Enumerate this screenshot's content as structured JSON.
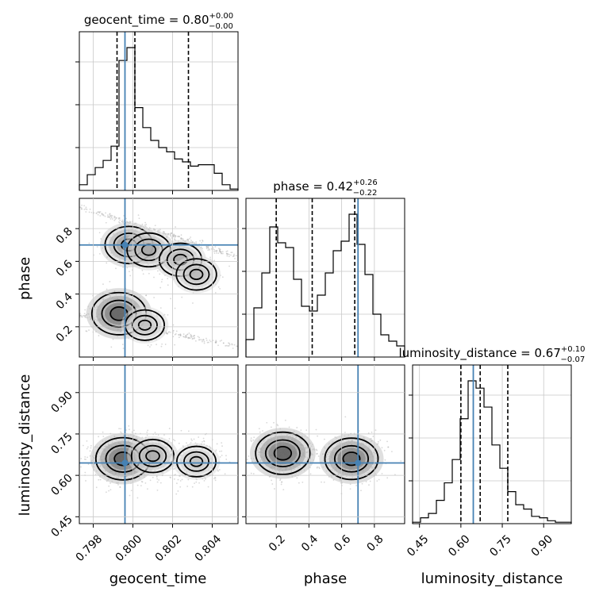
{
  "chart_data": {
    "type": "corner",
    "parameters": [
      "geocent_time",
      "phase",
      "luminosity_distance"
    ],
    "truths": {
      "geocent_time": 0.7996,
      "phase": 0.7,
      "luminosity_distance": 0.645
    },
    "grid": true,
    "panel_titles": [
      {
        "name": "geocent_time = 0.80",
        "sup": "+0.00",
        "sub": "−0.00"
      },
      {
        "name": "phase = 0.42",
        "sup": "+0.26",
        "sub": "−0.22"
      },
      {
        "name": "luminosity_distance = 0.67",
        "sup": "+0.10",
        "sub": "−0.07"
      }
    ],
    "axes": {
      "geocent_time": {
        "range": [
          0.7973,
          0.8053
        ],
        "ticks": [
          "0.798",
          "0.800",
          "0.802",
          "0.804"
        ],
        "tick_values": [
          0.798,
          0.8,
          0.802,
          0.804
        ]
      },
      "phase": {
        "range": [
          0.015,
          0.985
        ],
        "ticks": [
          "0.2",
          "0.4",
          "0.6",
          "0.8"
        ],
        "tick_values": [
          0.2,
          0.4,
          0.6,
          0.8
        ]
      },
      "luminosity_distance": {
        "range": [
          0.425,
          1.0
        ],
        "ticks": [
          "0.45",
          "0.60",
          "0.75",
          "0.90"
        ],
        "tick_values": [
          0.45,
          0.6,
          0.75,
          0.9
        ]
      }
    },
    "histograms": {
      "geocent_time": {
        "bins": [
          0.7973,
          0.7977,
          0.7981,
          0.7985,
          0.7989,
          0.7993,
          0.7997,
          0.8001,
          0.8005,
          0.8009,
          0.8013,
          0.8017,
          0.8021,
          0.8025,
          0.8029,
          0.8033,
          0.8037,
          0.8041,
          0.8045,
          0.8049,
          0.8053
        ],
        "counts": [
          4,
          11,
          16,
          21,
          31,
          91,
          100,
          58,
          44,
          35,
          30,
          27,
          22,
          20,
          17,
          18,
          18,
          12,
          4,
          1
        ],
        "quantiles": [
          0.7992,
          0.8001,
          0.8028
        ]
      },
      "phase": {
        "bins": [
          0.015,
          0.0635,
          0.112,
          0.1605,
          0.209,
          0.2575,
          0.306,
          0.3545,
          0.403,
          0.4515,
          0.5,
          0.5485,
          0.597,
          0.6455,
          0.694,
          0.7425,
          0.791,
          0.8395,
          0.888,
          0.9365,
          0.985
        ],
        "counts": [
          11,
          31,
          53,
          82,
          72,
          69,
          49,
          32,
          29,
          39,
          53,
          67,
          73,
          90,
          71,
          52,
          27,
          14,
          10,
          7
        ],
        "quantiles": [
          0.2,
          0.42,
          0.68
        ]
      },
      "luminosity_distance": {
        "bins": [
          0.425,
          0.4538,
          0.4825,
          0.5113,
          0.54,
          0.5688,
          0.5975,
          0.6263,
          0.655,
          0.6838,
          0.7125,
          0.7413,
          0.77,
          0.7988,
          0.8275,
          0.8563,
          0.885,
          0.9138,
          0.9425,
          0.9713,
          1.0
        ],
        "counts": [
          1,
          4,
          7,
          16,
          28,
          44,
          72,
          98,
          93,
          80,
          54,
          38,
          22,
          13,
          10,
          5,
          4,
          2,
          1,
          1
        ],
        "quantiles": [
          0.6,
          0.67,
          0.77
        ]
      }
    },
    "density_2d": [
      {
        "x": "geocent_time",
        "y": "phase",
        "modes": [
          {
            "x": 0.7993,
            "y": 0.28,
            "w": 1.0
          },
          {
            "x": 0.7998,
            "y": 0.7,
            "w": 0.7
          },
          {
            "x": 0.8008,
            "y": 0.67,
            "w": 0.5
          },
          {
            "x": 0.8024,
            "y": 0.61,
            "w": 0.45
          },
          {
            "x": 0.8032,
            "y": 0.52,
            "w": 0.35
          },
          {
            "x": 0.8006,
            "y": 0.21,
            "w": 0.3
          }
        ]
      },
      {
        "x": "geocent_time",
        "y": "luminosity_distance",
        "modes": [
          {
            "x": 0.7995,
            "y": 0.66,
            "w": 1.0
          },
          {
            "x": 0.801,
            "y": 0.67,
            "w": 0.45
          },
          {
            "x": 0.8032,
            "y": 0.65,
            "w": 0.3
          }
        ]
      },
      {
        "x": "phase",
        "y": "luminosity_distance",
        "modes": [
          {
            "x": 0.24,
            "y": 0.68,
            "w": 1.0
          },
          {
            "x": 0.66,
            "y": 0.66,
            "w": 0.95
          }
        ]
      }
    ]
  }
}
